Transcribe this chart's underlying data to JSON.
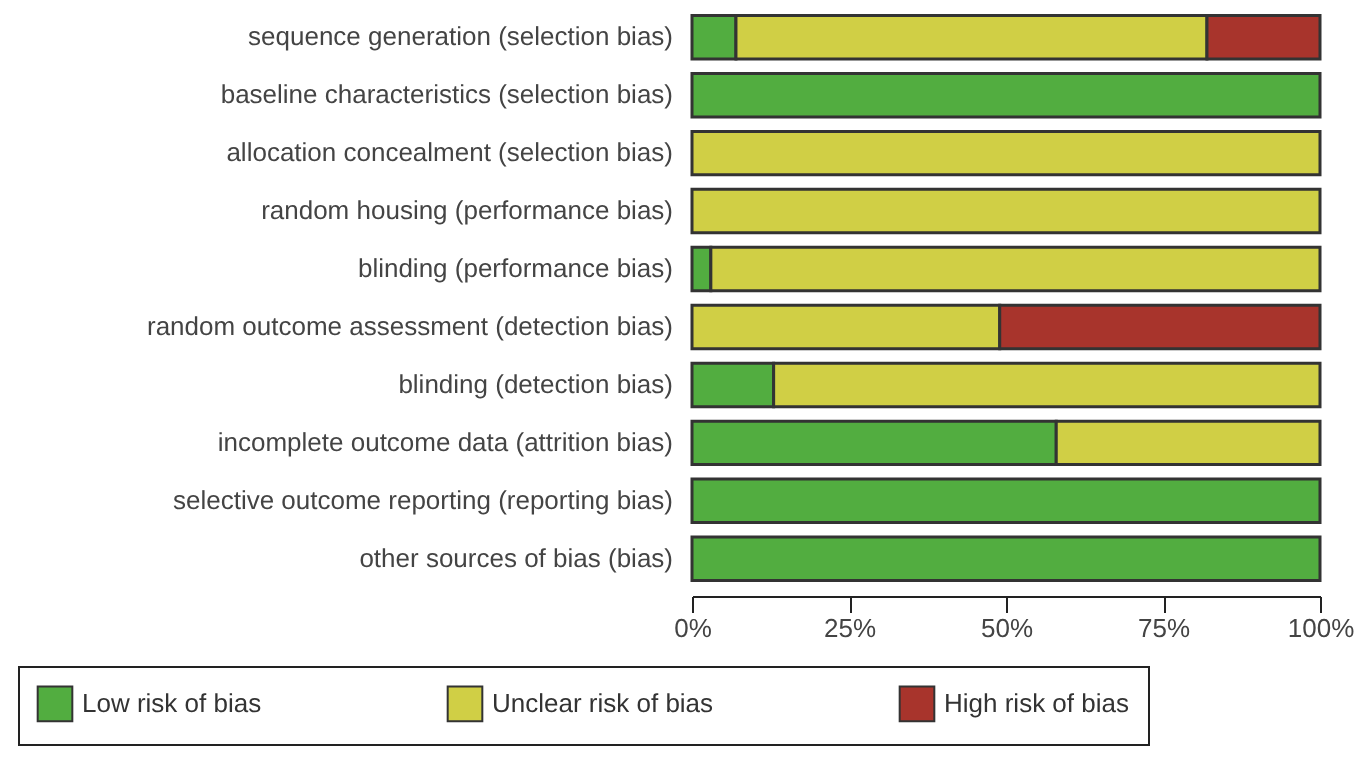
{
  "chart_data": {
    "type": "bar",
    "orientation": "horizontal",
    "stacked": true,
    "categories": [
      "sequence generation (selection bias)",
      "baseline characteristics (selection bias)",
      "allocation concealment (selection bias)",
      "random housing (performance bias)",
      "blinding (performance bias)",
      "random outcome assessment (detection bias)",
      "blinding (detection bias)",
      "incomplete outcome data (attrition bias)",
      "selective outcome reporting (reporting bias)",
      "other sources of bias (bias)"
    ],
    "series": [
      {
        "name": "Low risk of bias",
        "color": "#52ad40",
        "values": [
          7,
          100,
          null,
          null,
          3,
          null,
          13,
          58,
          100,
          100
        ]
      },
      {
        "name": "Unclear risk of bias",
        "color": "#d0cf45",
        "values": [
          75,
          null,
          100,
          100,
          97,
          49,
          87,
          42,
          null,
          null
        ]
      },
      {
        "name": "High risk of bias",
        "color": "#a8342c",
        "values": [
          18,
          null,
          null,
          null,
          null,
          51,
          null,
          null,
          null,
          null
        ]
      }
    ],
    "xlim": [
      0,
      100
    ],
    "xticks": [
      {
        "value": 0,
        "label": "0%"
      },
      {
        "value": 25,
        "label": "25%"
      },
      {
        "value": 50,
        "label": "50%"
      },
      {
        "value": 75,
        "label": "75%"
      },
      {
        "value": 100,
        "label": "100%"
      }
    ],
    "grid": false,
    "legend": "bottom"
  }
}
